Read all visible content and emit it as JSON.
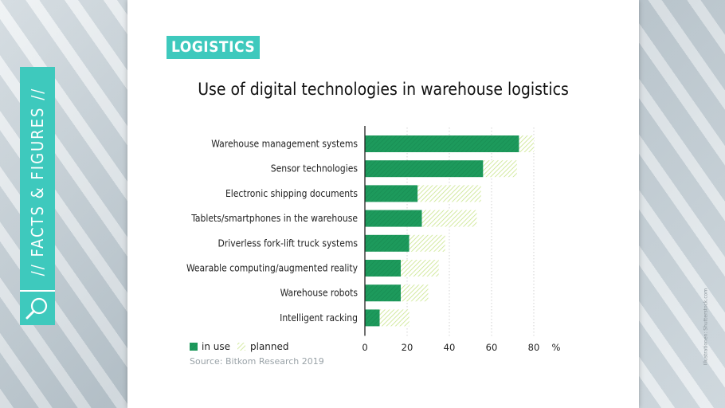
{
  "sidebar": {
    "label": "// FACTS & FIGURES //",
    "icon": "magnifier-icon",
    "color": "#3ec9bd"
  },
  "tag": {
    "label": "LOGISTICS"
  },
  "credit": {
    "text": "Illustrationen: Shutterstock.com"
  },
  "source": {
    "text": "Source: Bitkom Research 2019"
  },
  "colors": {
    "in_use": "#1d9a5c",
    "planned": "#c9e58a",
    "accent": "#3ec9bd"
  },
  "chart_data": {
    "type": "bar",
    "orientation": "horizontal",
    "stacked": true,
    "title": "Use of digital technologies in warehouse logistics",
    "categories": [
      "Warehouse management systems",
      "Sensor technologies",
      "Electronic shipping documents",
      "Tablets/smartphones in the warehouse",
      "Driverless fork-lift truck systems",
      "Wearable computing/augmented reality",
      "Warehouse robots",
      "Intelligent racking"
    ],
    "series": [
      {
        "name": "in use",
        "values": [
          73,
          56,
          25,
          27,
          21,
          17,
          17,
          7
        ]
      },
      {
        "name": "planned",
        "values": [
          7,
          16,
          30,
          26,
          17,
          18,
          13,
          14
        ]
      }
    ],
    "xlim": [
      0,
      80
    ],
    "xticks": [
      "0",
      "20",
      "40",
      "60",
      "80"
    ],
    "unit": "%",
    "grid": "vertical dotted",
    "legend": "bottom-left"
  }
}
